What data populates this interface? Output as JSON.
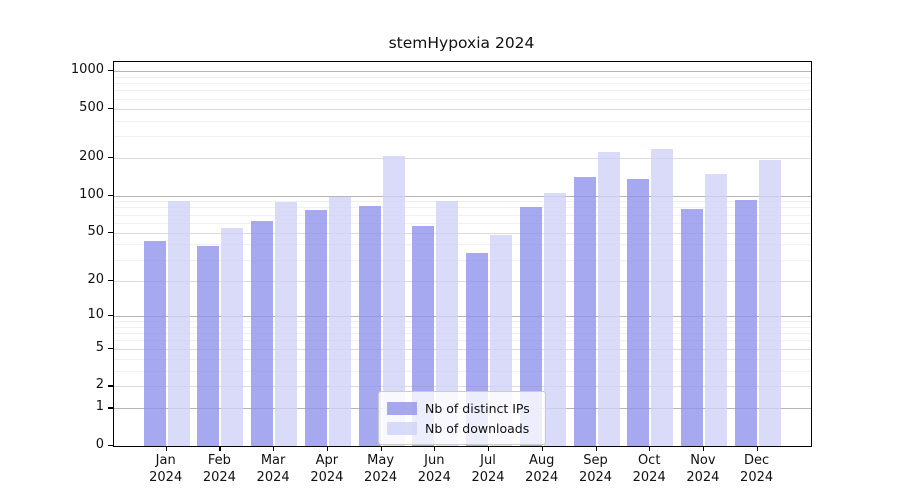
{
  "title": "stemHypoxia 2024",
  "legend": {
    "items": [
      {
        "label": "Nb of distinct IPs",
        "color": "rgba(144,146,236,0.8)"
      },
      {
        "label": "Nb of downloads",
        "color": "rgba(208,210,248,0.8)"
      }
    ]
  },
  "chart_data": {
    "type": "bar",
    "title": "stemHypoxia 2024",
    "categories": [
      "Jan 2024",
      "Feb 2024",
      "Mar 2024",
      "Apr 2024",
      "May 2024",
      "Jun 2024",
      "Jul 2024",
      "Aug 2024",
      "Sep 2024",
      "Oct 2024",
      "Nov 2024",
      "Dec 2024"
    ],
    "series": [
      {
        "name": "Nb of distinct IPs",
        "color": "rgba(144,146,236,0.8)",
        "values": [
          43,
          39,
          62,
          77,
          82,
          57,
          34,
          80,
          140,
          135,
          78,
          92
        ]
      },
      {
        "name": "Nb of downloads",
        "color": "rgba(208,210,248,0.8)",
        "values": [
          90,
          55,
          88,
          98,
          210,
          90,
          48,
          105,
          225,
          235,
          148,
          195
        ]
      }
    ],
    "xlabel": "",
    "ylabel": "",
    "yscale": "log10(value+1)",
    "ylim": [
      0,
      1180
    ],
    "yticks_labeled": [
      0,
      1,
      2,
      5,
      10,
      20,
      50,
      100,
      200,
      500,
      1000
    ],
    "yticks_major": [
      1,
      10,
      100,
      1000
    ],
    "yticks_medium": [
      2,
      5,
      20,
      50,
      200,
      500
    ],
    "yticks_minor": [
      3,
      4,
      6,
      7,
      8,
      9,
      30,
      40,
      60,
      70,
      80,
      90,
      300,
      400,
      600,
      700,
      800,
      900
    ],
    "grid": true,
    "legend_position": "lower center"
  }
}
